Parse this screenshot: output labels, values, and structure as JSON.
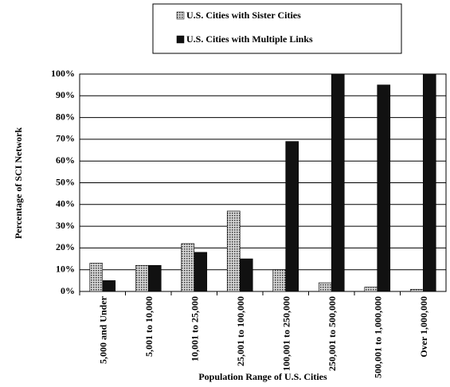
{
  "chart_data": {
    "type": "bar",
    "xlabel": "Population Range of U.S. Cities",
    "ylabel": "Percentage of SCI Network",
    "categories": [
      "5,000 and Under",
      "5,001 to 10,000",
      "10,001 to 25,000",
      "25,001 to 100,000",
      "100,001 to 250,000",
      "250,001 to 500,000",
      "500,001 to 1,000,000",
      "Over 1,000,000"
    ],
    "series": [
      {
        "name": "U.S. Cities with Sister Cities",
        "color": "#a8a8a8",
        "values": [
          13,
          12,
          22,
          37,
          10,
          4,
          2,
          1
        ]
      },
      {
        "name": "U.S. Cities with Multiple Links",
        "color": "#111111",
        "values": [
          5,
          12,
          18,
          15,
          69,
          100,
          95,
          100
        ]
      }
    ],
    "ylim": [
      0,
      100
    ],
    "yticks": [
      {
        "value": 0,
        "label": "0%"
      },
      {
        "value": 10,
        "label": "10%"
      },
      {
        "value": 20,
        "label": "20%"
      },
      {
        "value": 30,
        "label": "30%"
      },
      {
        "value": 40,
        "label": "40%"
      },
      {
        "value": 50,
        "label": "50%"
      },
      {
        "value": 60,
        "label": "60%"
      },
      {
        "value": 70,
        "label": "70%"
      },
      {
        "value": 80,
        "label": "80%"
      },
      {
        "value": 90,
        "label": "90%"
      },
      {
        "value": 100,
        "label": "100%"
      }
    ],
    "grid": true,
    "legend": "top"
  }
}
